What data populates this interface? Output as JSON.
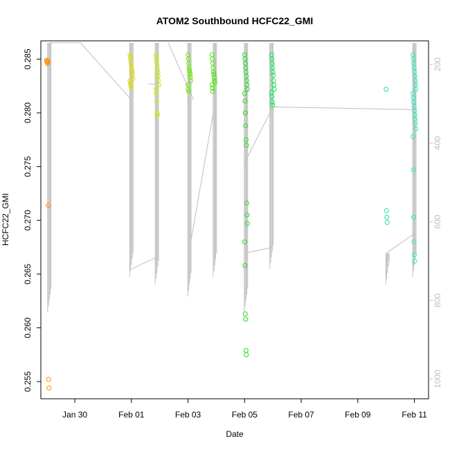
{
  "chart_data": {
    "type": "scatter",
    "title": "ATOM2 Southbound HCFC22_GMI",
    "xlabel": "Date",
    "ylabel": "HCFC22_GMI",
    "x_ticks": [
      "Jan 30",
      "Feb 01",
      "Feb 03",
      "Feb 05",
      "Feb 07",
      "Feb 09",
      "Feb 11"
    ],
    "y_ticks": [
      "0.255",
      "0.260",
      "0.265",
      "0.270",
      "0.275",
      "0.280",
      "0.285"
    ],
    "y2_ticks": [
      "200",
      "400",
      "600",
      "800",
      "1000"
    ],
    "x_range_days": [
      -1.2,
      12.5
    ],
    "ylim": [
      0.2534,
      0.2867
    ],
    "y2lim": [
      1050,
      140
    ],
    "y2_axis": "pressure (gray profile lines)",
    "colors": {
      "line": "#bebebe",
      "axis": "#000000",
      "right_axis": "#bebebe"
    },
    "point_groups": [
      {
        "date": "Jan 29",
        "x": -0.95,
        "color": "#ff8c00",
        "values": [
          0.2849,
          0.2848,
          0.2847,
          0.2846,
          0.2848,
          0.2714,
          0.2552,
          0.2544
        ]
      },
      {
        "date": "Feb 01",
        "x": 2.0,
        "color": "#dddd00",
        "values": [
          0.2854,
          0.2852,
          0.2849,
          0.2846,
          0.2843,
          0.284,
          0.2838,
          0.2835,
          0.2832,
          0.283,
          0.2828,
          0.2826,
          0.2824
        ]
      },
      {
        "date": "Feb 01",
        "x": 2.92,
        "color": "#ccee00",
        "values": [
          0.2854,
          0.2851,
          0.2847,
          0.2844,
          0.284,
          0.2837,
          0.2834,
          0.283,
          0.2826,
          0.2822,
          0.2818,
          0.2811,
          0.28,
          0.2798
        ]
      },
      {
        "date": "Feb 03",
        "x": 4.05,
        "color": "#66ee00",
        "values": [
          0.2854,
          0.285,
          0.2846,
          0.2842,
          0.284,
          0.2838,
          0.2836,
          0.2833,
          0.283,
          0.2826,
          0.2822,
          0.282
        ]
      },
      {
        "date": "Feb 03",
        "x": 4.9,
        "color": "#44ee00",
        "values": [
          0.2854,
          0.285,
          0.2846,
          0.2842,
          0.2838,
          0.2836,
          0.2833,
          0.283,
          0.2828,
          0.2826,
          0.2823,
          0.282
        ]
      },
      {
        "date": "Feb 05",
        "x": 6.05,
        "color": "#22dd22",
        "values": [
          0.2854,
          0.285,
          0.2846,
          0.2842,
          0.2838,
          0.2834,
          0.283,
          0.2826,
          0.2822,
          0.2818,
          0.2811,
          0.28,
          0.2788,
          0.2775,
          0.277,
          0.2716,
          0.2705,
          0.2697,
          0.268,
          0.2658,
          0.2613,
          0.2608,
          0.2579,
          0.2575
        ]
      },
      {
        "date": "Feb 05",
        "x": 7.0,
        "color": "#00ee44",
        "values": [
          0.2854,
          0.285,
          0.2846,
          0.2842,
          0.2838,
          0.2835,
          0.283,
          0.2826,
          0.2822,
          0.2819,
          0.2815,
          0.281,
          0.2807
        ]
      },
      {
        "date": "Feb 09",
        "x": 11.05,
        "color": "#22ddaa",
        "values": [
          0.2822,
          0.2709,
          0.2703,
          0.2698
        ]
      },
      {
        "date": "Feb 11",
        "x": 12.0,
        "color": "#22eebb",
        "values": [
          0.2854,
          0.285,
          0.2846,
          0.2842,
          0.2838,
          0.2834,
          0.283,
          0.2826,
          0.2822,
          0.2818,
          0.2814,
          0.281,
          0.2806,
          0.2802,
          0.2798,
          0.2794,
          0.279,
          0.2785,
          0.2778,
          0.2747,
          0.2703,
          0.268,
          0.2668,
          0.2662
        ]
      }
    ],
    "profiles": [
      {
        "x": -0.9,
        "p_top": 145,
        "p_bottom": 830
      },
      {
        "x": 2.0,
        "p_top": 145,
        "p_bottom": 740
      },
      {
        "x": 2.9,
        "p_top": 145,
        "p_bottom": 760
      },
      {
        "x": 4.05,
        "p_top": 145,
        "p_bottom": 790
      },
      {
        "x": 4.95,
        "p_top": 145,
        "p_bottom": 740
      },
      {
        "x": 6.05,
        "p_top": 145,
        "p_bottom": 830
      },
      {
        "x": 6.95,
        "p_top": 145,
        "p_bottom": 720
      },
      {
        "x": 11.05,
        "p_top": 680,
        "p_bottom": 760
      },
      {
        "x": 12.0,
        "p_top": 145,
        "p_bottom": 740
      }
    ],
    "transits": [
      {
        "x": [
          -0.9,
          0.2
        ],
        "p": [
          145,
          145
        ]
      },
      {
        "x": [
          0.2,
          2.0
        ],
        "p": [
          145,
          290
        ]
      },
      {
        "x": [
          2.0,
          2.9
        ],
        "p": [
          720,
          690
        ]
      },
      {
        "x": [
          2.9,
          2.6
        ],
        "p": [
          250,
          250
        ]
      },
      {
        "x": [
          3.3,
          4.2
        ],
        "p": [
          145,
          290
        ]
      },
      {
        "x": [
          4.1,
          4.9
        ],
        "p": [
          650,
          320
        ]
      },
      {
        "x": [
          6.0,
          7.0
        ],
        "p": [
          680,
          665
        ]
      },
      {
        "x": [
          6.0,
          7.0
        ],
        "p": [
          450,
          308
        ]
      },
      {
        "x": [
          7.0,
          12.0
        ],
        "p": [
          308,
          315
        ]
      },
      {
        "x": [
          11.0,
          12.0
        ],
        "p": [
          680,
          630
        ]
      }
    ]
  }
}
